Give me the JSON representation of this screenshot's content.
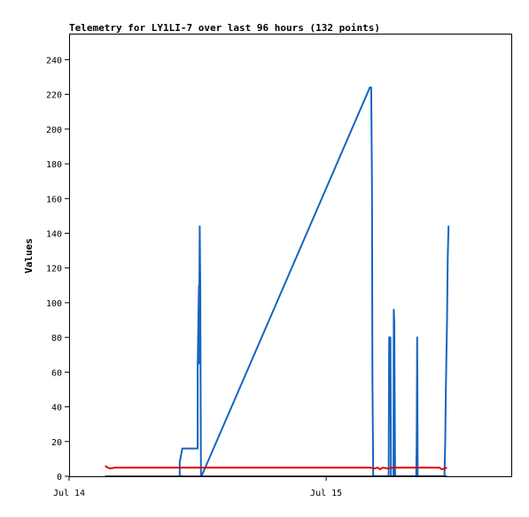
{
  "chart_data": {
    "type": "line",
    "title": "Telemetry for LY1LI-7 over last 96 hours (132 points)",
    "xlabel": "",
    "ylabel": "Values",
    "xlim": [
      0,
      1.72
    ],
    "ylim": [
      0,
      255
    ],
    "x_unit": "days since Jul 14 00:00",
    "x_ticks": [
      {
        "value": 0,
        "label": "Jul 14"
      },
      {
        "value": 1,
        "label": "Jul 15"
      }
    ],
    "y_ticks": [
      0,
      20,
      40,
      60,
      80,
      100,
      120,
      140,
      160,
      180,
      200,
      220,
      240
    ],
    "grid": false,
    "legend": "none",
    "series": [
      {
        "color": "#1565c0",
        "points": [
          [
            0.44,
            0
          ],
          [
            0.43,
            0
          ],
          [
            0.43,
            8
          ],
          [
            0.44,
            16
          ],
          [
            0.49,
            16
          ],
          [
            0.5,
            16
          ],
          [
            0.5,
            63
          ],
          [
            0.505,
            110
          ],
          [
            0.505,
            65
          ],
          [
            0.508,
            144
          ],
          [
            0.51,
            112
          ],
          [
            0.512,
            40
          ],
          [
            0.513,
            0
          ],
          [
            0.515,
            0
          ],
          [
            1.17,
            224
          ],
          [
            1.175,
            224
          ],
          [
            1.178,
            168
          ],
          [
            1.18,
            57
          ],
          [
            1.183,
            0
          ],
          [
            1.243,
            0
          ],
          [
            1.245,
            80
          ],
          [
            1.25,
            80
          ],
          [
            1.252,
            0
          ],
          [
            1.262,
            0
          ],
          [
            1.263,
            96
          ],
          [
            1.265,
            88
          ],
          [
            1.268,
            0
          ],
          [
            1.35,
            0
          ],
          [
            1.352,
            16
          ],
          [
            1.354,
            80
          ],
          [
            1.356,
            0
          ],
          [
            1.46,
            0
          ],
          [
            1.463,
            18
          ],
          [
            1.466,
            54
          ],
          [
            1.47,
            90
          ],
          [
            1.473,
            126
          ],
          [
            1.476,
            144
          ],
          [
            1.478,
            144
          ]
        ]
      },
      {
        "color": "#e00000",
        "points": [
          [
            0.14,
            6
          ],
          [
            0.15,
            5
          ],
          [
            0.16,
            4.5
          ],
          [
            0.18,
            5
          ],
          [
            0.3,
            5
          ],
          [
            0.5,
            5
          ],
          [
            0.8,
            5
          ],
          [
            1.0,
            5
          ],
          [
            1.17,
            5
          ],
          [
            1.19,
            4.5
          ],
          [
            1.2,
            5
          ],
          [
            1.21,
            4
          ],
          [
            1.22,
            5
          ],
          [
            1.24,
            4.5
          ],
          [
            1.26,
            5
          ],
          [
            1.3,
            5
          ],
          [
            1.4,
            5
          ],
          [
            1.44,
            5
          ],
          [
            1.45,
            4
          ],
          [
            1.46,
            4.5
          ],
          [
            1.47,
            5
          ]
        ]
      },
      {
        "color": "#000000",
        "points": [
          [
            0.14,
            0
          ],
          [
            1.47,
            0
          ]
        ]
      }
    ]
  }
}
